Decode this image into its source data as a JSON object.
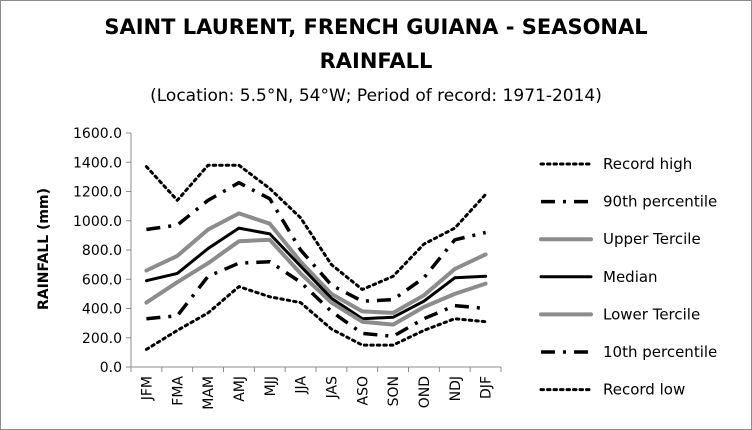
{
  "chart_data": {
    "type": "line",
    "title_line1": "SAINT LAURENT, FRENCH GUIANA - SEASONAL",
    "title_line2": "RAINFALL",
    "subtitle": "(Location: 5.5°N, 54°W; Period of record: 1971-2014)",
    "xlabel": "",
    "ylabel": "RAINFALL (mm)",
    "ylim": [
      0,
      1600
    ],
    "yticks": [
      "0.0",
      "200.0",
      "400.0",
      "600.0",
      "800.0",
      "1000.0",
      "1200.0",
      "1400.0",
      "1600.0"
    ],
    "grid": false,
    "legend_position": "right",
    "categories": [
      "JFM",
      "FMA",
      "MAM",
      "AMJ",
      "MJJ",
      "JJA",
      "JAS",
      "ASO",
      "SON",
      "OND",
      "NDJ",
      "DJF"
    ],
    "series": [
      {
        "name": "Record high",
        "style": "dotted",
        "color": "#000000",
        "values": [
          1370,
          1140,
          1380,
          1380,
          1220,
          1020,
          700,
          530,
          620,
          840,
          950,
          1180
        ]
      },
      {
        "name": "90th percentile",
        "style": "dashdot",
        "color": "#000000",
        "values": [
          940,
          970,
          1140,
          1260,
          1150,
          800,
          560,
          450,
          460,
          610,
          870,
          920
        ]
      },
      {
        "name": "Upper Tercile",
        "style": "solid-gray",
        "color": "#8c8c8c",
        "values": [
          660,
          760,
          940,
          1050,
          980,
          720,
          500,
          380,
          370,
          490,
          670,
          770
        ]
      },
      {
        "name": "Median",
        "style": "solid-black",
        "color": "#000000",
        "values": [
          590,
          640,
          810,
          950,
          910,
          690,
          470,
          330,
          340,
          450,
          610,
          620
        ]
      },
      {
        "name": "Lower Tercile",
        "style": "solid-gray",
        "color": "#8c8c8c",
        "values": [
          440,
          580,
          710,
          860,
          870,
          640,
          440,
          310,
          290,
          410,
          500,
          570
        ]
      },
      {
        "name": "10th percentile",
        "style": "dashdot",
        "color": "#000000",
        "values": [
          330,
          350,
          620,
          710,
          720,
          580,
          380,
          230,
          210,
          330,
          420,
          400
        ]
      },
      {
        "name": "Record low",
        "style": "dotted",
        "color": "#000000",
        "values": [
          120,
          250,
          370,
          550,
          480,
          440,
          260,
          150,
          150,
          250,
          330,
          310
        ]
      }
    ]
  }
}
